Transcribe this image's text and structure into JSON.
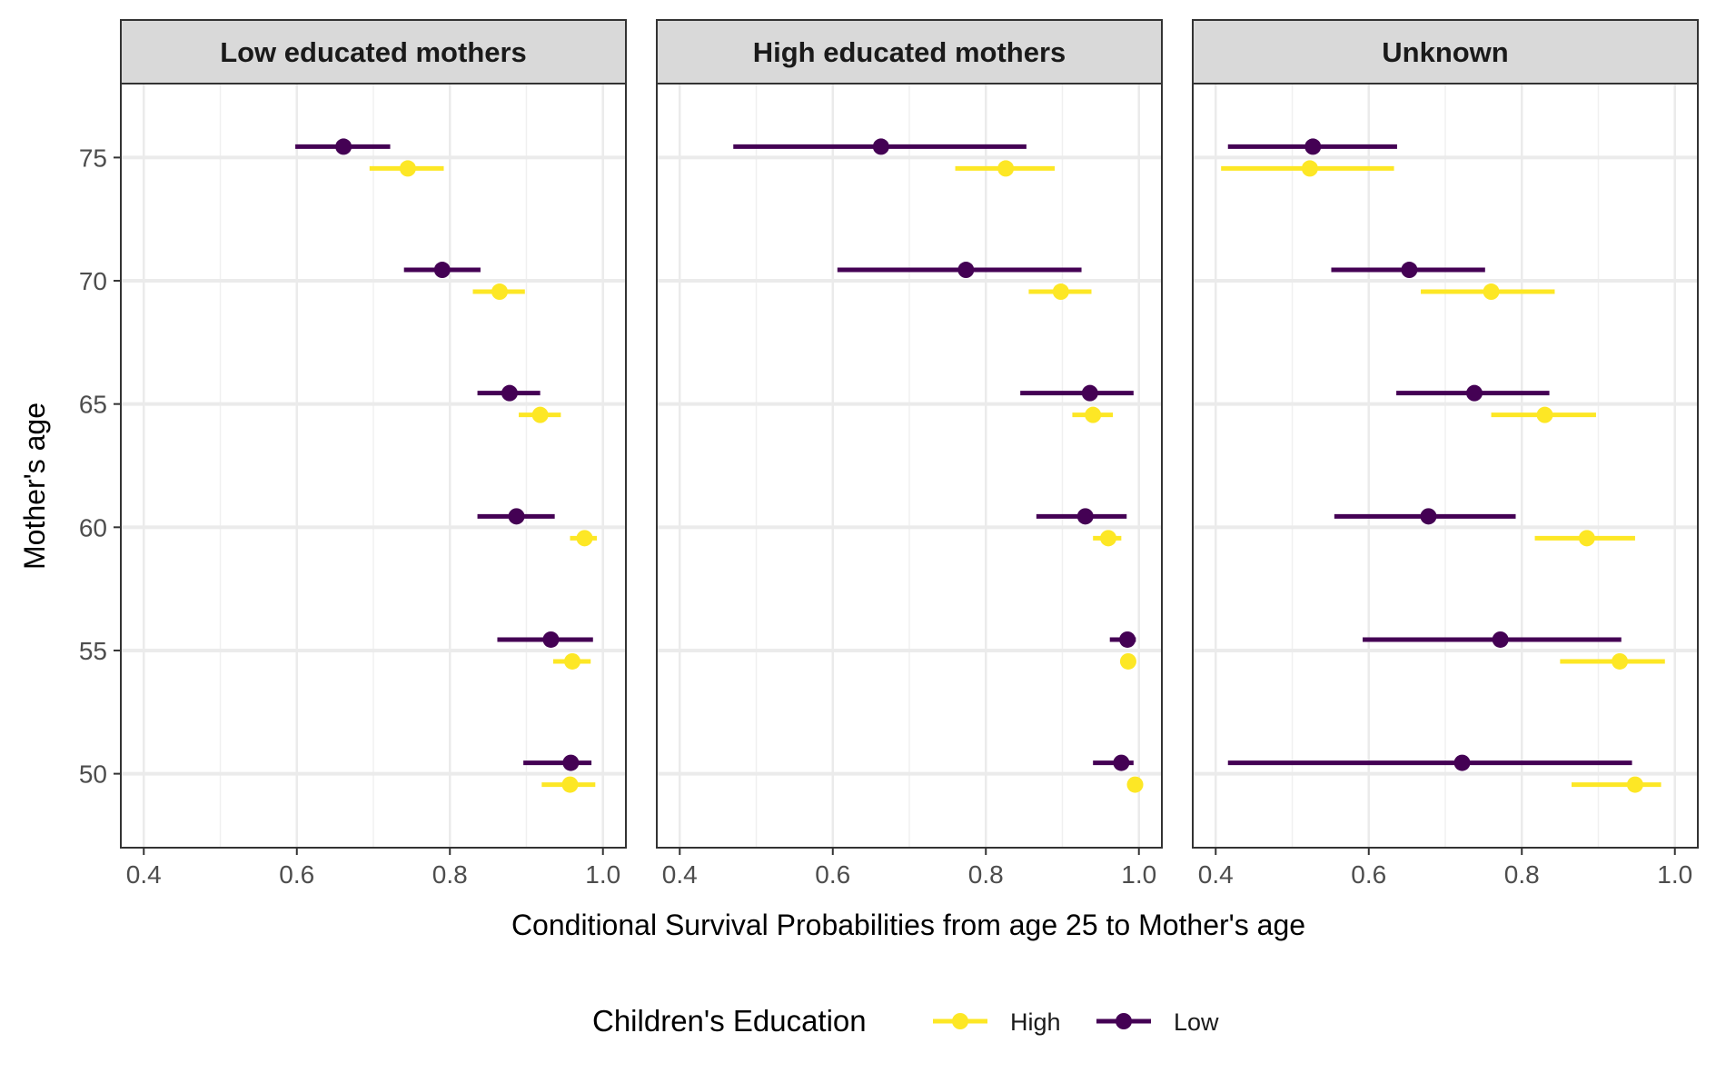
{
  "chart_data": {
    "type": "scatter",
    "subtype": "point-range (dot and whisker), faceted",
    "xlabel": "Conditional Survival Probabilities from age 25 to Mother's age",
    "ylabel": "Mother's age",
    "xlim": [
      0.37,
      1.03
    ],
    "ylim": [
      47,
      78
    ],
    "x_ticks": [
      0.4,
      0.6,
      0.8,
      1.0
    ],
    "x_tick_labels": [
      "0.4",
      "0.6",
      "0.8",
      "1.0"
    ],
    "y_ticks": [
      50,
      55,
      60,
      65,
      70,
      75
    ],
    "y_tick_labels": [
      "50",
      "55",
      "60",
      "65",
      "70",
      "75"
    ],
    "grid": true,
    "legend": {
      "title": "Children's Education",
      "position": "bottom",
      "entries": [
        {
          "label": "High",
          "color": "#FDE725"
        },
        {
          "label": "Low",
          "color": "#440154"
        }
      ]
    },
    "series_colors": {
      "High": "#FDE725",
      "Low": "#440154"
    },
    "facets": [
      {
        "title": "Low educated mothers",
        "series": [
          {
            "name": "High",
            "points": [
              {
                "age": 75,
                "est": 0.745,
                "lo": 0.695,
                "hi": 0.792
              },
              {
                "age": 70,
                "est": 0.865,
                "lo": 0.83,
                "hi": 0.898
              },
              {
                "age": 65,
                "est": 0.918,
                "lo": 0.89,
                "hi": 0.945
              },
              {
                "age": 60,
                "est": 0.976,
                "lo": 0.957,
                "hi": 0.992
              },
              {
                "age": 55,
                "est": 0.96,
                "lo": 0.935,
                "hi": 0.984
              },
              {
                "age": 50,
                "est": 0.957,
                "lo": 0.92,
                "hi": 0.99
              }
            ]
          },
          {
            "name": "Low",
            "points": [
              {
                "age": 75,
                "est": 0.661,
                "lo": 0.598,
                "hi": 0.722
              },
              {
                "age": 70,
                "est": 0.79,
                "lo": 0.74,
                "hi": 0.84
              },
              {
                "age": 65,
                "est": 0.878,
                "lo": 0.836,
                "hi": 0.918
              },
              {
                "age": 60,
                "est": 0.887,
                "lo": 0.836,
                "hi": 0.937
              },
              {
                "age": 55,
                "est": 0.932,
                "lo": 0.862,
                "hi": 0.987
              },
              {
                "age": 50,
                "est": 0.958,
                "lo": 0.896,
                "hi": 0.985
              }
            ]
          }
        ]
      },
      {
        "title": "High educated mothers",
        "series": [
          {
            "name": "High",
            "points": [
              {
                "age": 75,
                "est": 0.826,
                "lo": 0.76,
                "hi": 0.89
              },
              {
                "age": 70,
                "est": 0.898,
                "lo": 0.856,
                "hi": 0.938
              },
              {
                "age": 65,
                "est": 0.94,
                "lo": 0.913,
                "hi": 0.966
              },
              {
                "age": 60,
                "est": 0.96,
                "lo": 0.94,
                "hi": 0.977
              },
              {
                "age": 55,
                "est": 0.986,
                "lo": 0.98,
                "hi": 0.99
              },
              {
                "age": 50,
                "est": 0.995,
                "lo": 0.991,
                "hi": 0.998
              }
            ]
          },
          {
            "name": "Low",
            "points": [
              {
                "age": 75,
                "est": 0.663,
                "lo": 0.47,
                "hi": 0.853
              },
              {
                "age": 70,
                "est": 0.774,
                "lo": 0.606,
                "hi": 0.925
              },
              {
                "age": 65,
                "est": 0.936,
                "lo": 0.845,
                "hi": 0.993
              },
              {
                "age": 60,
                "est": 0.93,
                "lo": 0.866,
                "hi": 0.984
              },
              {
                "age": 55,
                "est": 0.985,
                "lo": 0.962,
                "hi": 0.996
              },
              {
                "age": 50,
                "est": 0.977,
                "lo": 0.94,
                "hi": 0.993
              }
            ]
          }
        ]
      },
      {
        "title": "Unknown",
        "series": [
          {
            "name": "High",
            "points": [
              {
                "age": 75,
                "est": 0.523,
                "lo": 0.407,
                "hi": 0.633
              },
              {
                "age": 70,
                "est": 0.76,
                "lo": 0.668,
                "hi": 0.843
              },
              {
                "age": 65,
                "est": 0.83,
                "lo": 0.76,
                "hi": 0.897
              },
              {
                "age": 60,
                "est": 0.885,
                "lo": 0.817,
                "hi": 0.948
              },
              {
                "age": 55,
                "est": 0.928,
                "lo": 0.85,
                "hi": 0.987
              },
              {
                "age": 50,
                "est": 0.948,
                "lo": 0.865,
                "hi": 0.982
              }
            ]
          },
          {
            "name": "Low",
            "points": [
              {
                "age": 75,
                "est": 0.527,
                "lo": 0.416,
                "hi": 0.637
              },
              {
                "age": 70,
                "est": 0.653,
                "lo": 0.551,
                "hi": 0.752
              },
              {
                "age": 65,
                "est": 0.738,
                "lo": 0.636,
                "hi": 0.836
              },
              {
                "age": 60,
                "est": 0.678,
                "lo": 0.555,
                "hi": 0.792
              },
              {
                "age": 55,
                "est": 0.772,
                "lo": 0.592,
                "hi": 0.93
              },
              {
                "age": 50,
                "est": 0.722,
                "lo": 0.416,
                "hi": 0.944
              }
            ]
          }
        ]
      }
    ]
  }
}
